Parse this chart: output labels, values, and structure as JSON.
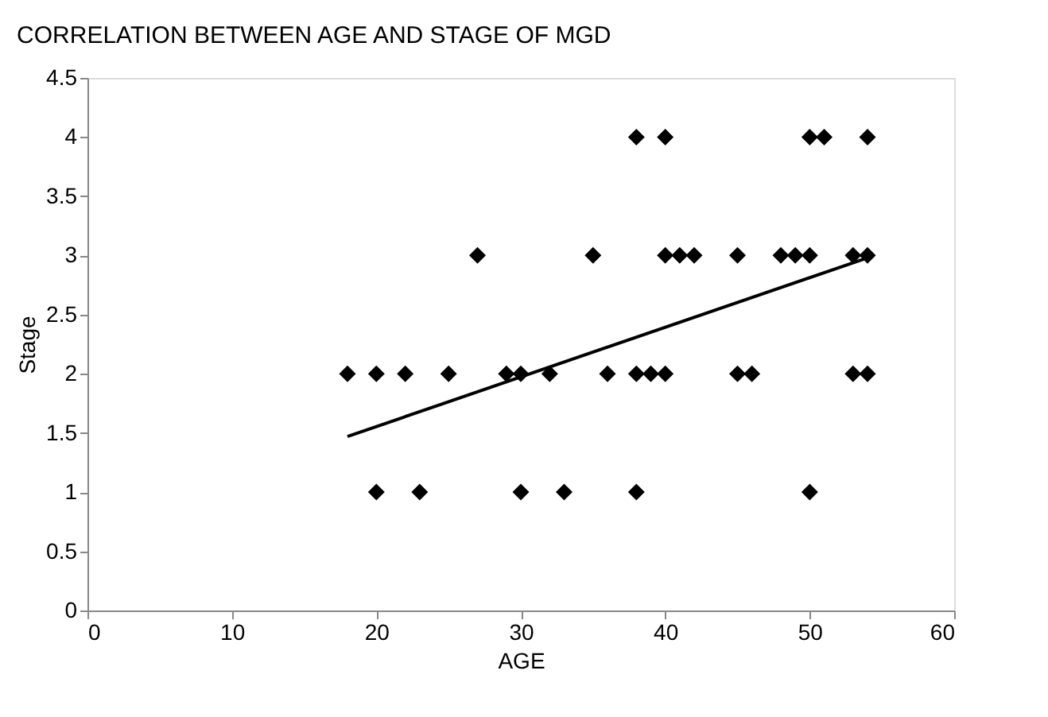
{
  "chart_data": {
    "type": "scatter",
    "title": "CORRELATION BETWEEN AGE AND STAGE OF MGD",
    "xlabel": "AGE",
    "ylabel": "Stage",
    "series": [
      {
        "color": "#000000",
        "marker": "diamond",
        "x": [
          18,
          20,
          22,
          25,
          29,
          30,
          32,
          36,
          38,
          39,
          40,
          45,
          46,
          53,
          54,
          20,
          23,
          30,
          33,
          38,
          50,
          27,
          35,
          40,
          41,
          42,
          45,
          48,
          49,
          50,
          53,
          54,
          38,
          40,
          50,
          51,
          54
        ],
        "values": [
          2,
          2,
          2,
          2,
          2,
          2,
          2,
          2,
          2,
          2,
          2,
          2,
          2,
          2,
          2,
          1,
          1,
          1,
          1,
          1,
          1,
          3,
          3,
          3,
          3,
          3,
          3,
          3,
          3,
          3,
          3,
          3,
          4,
          4,
          4,
          4,
          4
        ]
      },
      {
        "type": "line",
        "color": "#000000",
        "marker": "none",
        "x": [
          18,
          54
        ],
        "values": [
          1.47,
          2.98
        ]
      }
    ],
    "xlim": [
      0,
      60
    ],
    "xticks": [
      0,
      10,
      20,
      30,
      40,
      50,
      60
    ],
    "ylim": [
      0,
      4.5
    ],
    "yticks": [
      0,
      0.5,
      1,
      1.5,
      2,
      2.5,
      3,
      3.5,
      4,
      4.5
    ],
    "grid": false
  }
}
